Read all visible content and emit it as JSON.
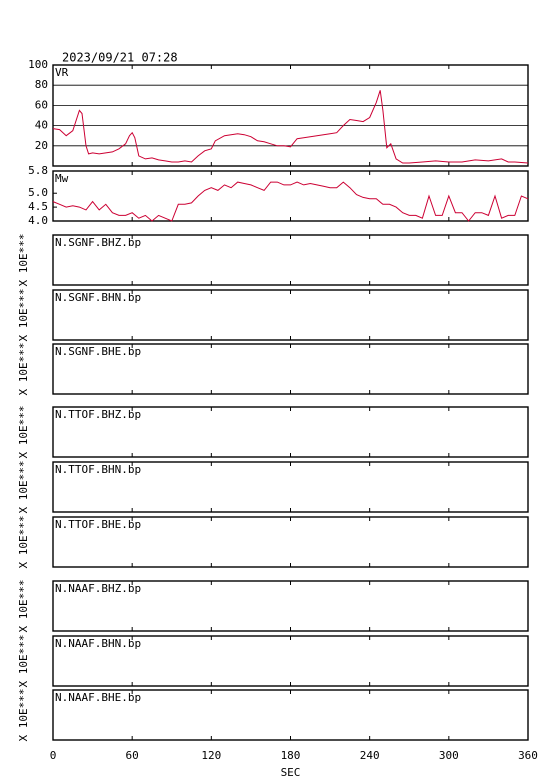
{
  "title": "2023/09/21  07:28",
  "chart_data": [
    {
      "type": "line",
      "label": "VR",
      "color": "#cc0033",
      "grid": true,
      "ylim": [
        0,
        100
      ],
      "yticks": [
        20,
        40,
        60,
        80,
        100
      ],
      "x": [
        0,
        5,
        10,
        15,
        20,
        22,
        25,
        27,
        30,
        35,
        40,
        45,
        50,
        55,
        58,
        60,
        62,
        65,
        70,
        75,
        80,
        85,
        90,
        95,
        100,
        105,
        110,
        115,
        120,
        123,
        130,
        135,
        140,
        145,
        150,
        155,
        160,
        165,
        170,
        175,
        180,
        185,
        190,
        195,
        200,
        205,
        210,
        215,
        220,
        225,
        230,
        235,
        240,
        245,
        248,
        250,
        253,
        256,
        260,
        265,
        270,
        280,
        290,
        300,
        310,
        320,
        330,
        340,
        345,
        350,
        360
      ],
      "values": [
        37,
        36,
        30,
        35,
        55,
        52,
        20,
        12,
        13,
        12,
        13,
        14,
        17,
        22,
        30,
        33,
        28,
        10,
        7,
        8,
        6,
        5,
        4,
        4,
        5,
        4,
        10,
        15,
        17,
        25,
        30,
        31,
        32,
        31,
        29,
        25,
        24,
        22,
        20,
        20,
        19,
        27,
        28,
        29,
        30,
        31,
        32,
        33,
        40,
        46,
        45,
        44,
        48,
        63,
        75,
        55,
        18,
        22,
        7,
        3,
        3,
        4,
        5,
        4,
        4,
        6,
        5,
        7,
        4,
        4,
        3
      ]
    },
    {
      "type": "line",
      "label": "Mw",
      "color": "#cc0033",
      "grid": false,
      "ylim": [
        4.0,
        5.8
      ],
      "yticks": [
        {
          "value": 4,
          "label": "4.0"
        },
        4.5,
        {
          "value": 5,
          "label": "5.0"
        },
        5.8
      ],
      "x": [
        0,
        5,
        10,
        15,
        20,
        25,
        30,
        35,
        40,
        45,
        50,
        55,
        60,
        65,
        70,
        75,
        80,
        85,
        90,
        95,
        100,
        105,
        110,
        115,
        120,
        125,
        130,
        135,
        140,
        145,
        150,
        155,
        160,
        165,
        170,
        175,
        180,
        185,
        190,
        195,
        200,
        205,
        210,
        215,
        220,
        225,
        230,
        235,
        240,
        245,
        250,
        255,
        260,
        265,
        270,
        275,
        280,
        285,
        290,
        295,
        300,
        305,
        310,
        315,
        320,
        325,
        330,
        335,
        340,
        345,
        350,
        355,
        360
      ],
      "values": [
        4.7,
        4.6,
        4.5,
        4.55,
        4.5,
        4.4,
        4.7,
        4.4,
        4.6,
        4.3,
        4.2,
        4.2,
        4.3,
        4.1,
        4.2,
        4.0,
        4.2,
        4.1,
        4.0,
        4.6,
        4.6,
        4.65,
        4.9,
        5.1,
        5.2,
        5.1,
        5.3,
        5.2,
        5.4,
        5.35,
        5.3,
        5.2,
        5.1,
        5.4,
        5.4,
        5.3,
        5.3,
        5.4,
        5.3,
        5.35,
        5.3,
        5.25,
        5.2,
        5.2,
        5.4,
        5.2,
        4.95,
        4.85,
        4.8,
        4.8,
        4.6,
        4.6,
        4.5,
        4.3,
        4.2,
        4.2,
        4.1,
        4.9,
        4.2,
        4.2,
        4.9,
        4.3,
        4.3,
        4.0,
        4.3,
        4.3,
        4.2,
        4.9,
        4.1,
        4.2,
        4.2,
        4.9,
        4.8
      ]
    },
    {
      "type": "waveform",
      "label": "N.SGNF.BHZ.bp",
      "y_label": "X 10E***"
    },
    {
      "type": "waveform",
      "label": "N.SGNF.BHN.bp",
      "y_label": "X 10E***"
    },
    {
      "type": "waveform",
      "label": "N.SGNF.BHE.bp",
      "y_label": "X 10E***"
    },
    {
      "type": "waveform",
      "label": "N.TTOF.BHZ.bp",
      "y_label": "X 10E***"
    },
    {
      "type": "waveform",
      "label": "N.TTOF.BHN.bp",
      "y_label": "X 10E***"
    },
    {
      "type": "waveform",
      "label": "N.TTOF.BHE.bp",
      "y_label": "X 10E***"
    },
    {
      "type": "waveform",
      "label": "N.NAAF.BHZ.bp",
      "y_label": "X 10E***"
    },
    {
      "type": "waveform",
      "label": "N.NAAF.BHN.bp",
      "y_label": "X 10E***"
    },
    {
      "type": "waveform",
      "label": "N.NAAF.BHE.bp",
      "y_label": "X 10E***",
      "xlim": [
        0,
        360
      ],
      "xticks": [
        0,
        60,
        120,
        180,
        240,
        300,
        360
      ],
      "x_label": "SEC"
    }
  ]
}
